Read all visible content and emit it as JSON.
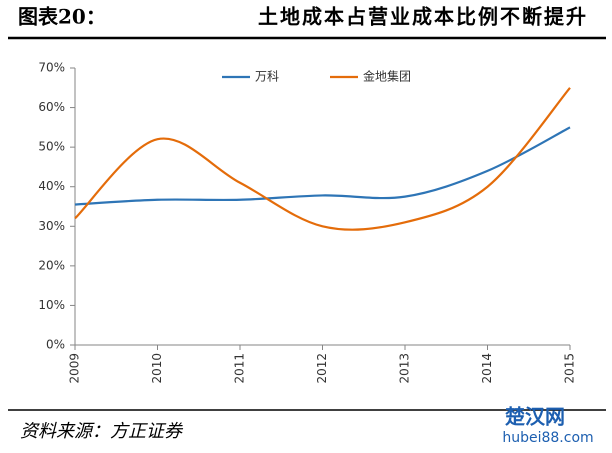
{
  "header": {
    "label": "图表20：",
    "title": "土地成本占营业成本比例不断提升"
  },
  "chart_data": {
    "type": "line",
    "smooth": true,
    "categories": [
      "2009",
      "2010",
      "2011",
      "2012",
      "2013",
      "2014",
      "2015"
    ],
    "series": [
      {
        "name": "万科",
        "color": "#2e75b6",
        "values": [
          35.5,
          36.7,
          36.7,
          37.8,
          37.5,
          44,
          55
        ]
      },
      {
        "name": "金地集团",
        "color": "#e46c0a",
        "values": [
          32,
          52,
          41,
          30,
          31,
          40,
          65
        ]
      }
    ],
    "ylim": [
      0,
      70
    ],
    "yticks": [
      {
        "value": 0,
        "label": "0%"
      },
      {
        "value": 10,
        "label": "10%"
      },
      {
        "value": 20,
        "label": "20%"
      },
      {
        "value": 30,
        "label": "30%"
      },
      {
        "value": 40,
        "label": "40%"
      },
      {
        "value": 50,
        "label": "50%"
      },
      {
        "value": 60,
        "label": "60%"
      },
      {
        "value": 70,
        "label": "70%"
      }
    ],
    "legend": "top"
  },
  "footer": {
    "source": "资料来源：方正证券",
    "watermark": "楚汉网",
    "watermark_url": "hubei88.com"
  }
}
